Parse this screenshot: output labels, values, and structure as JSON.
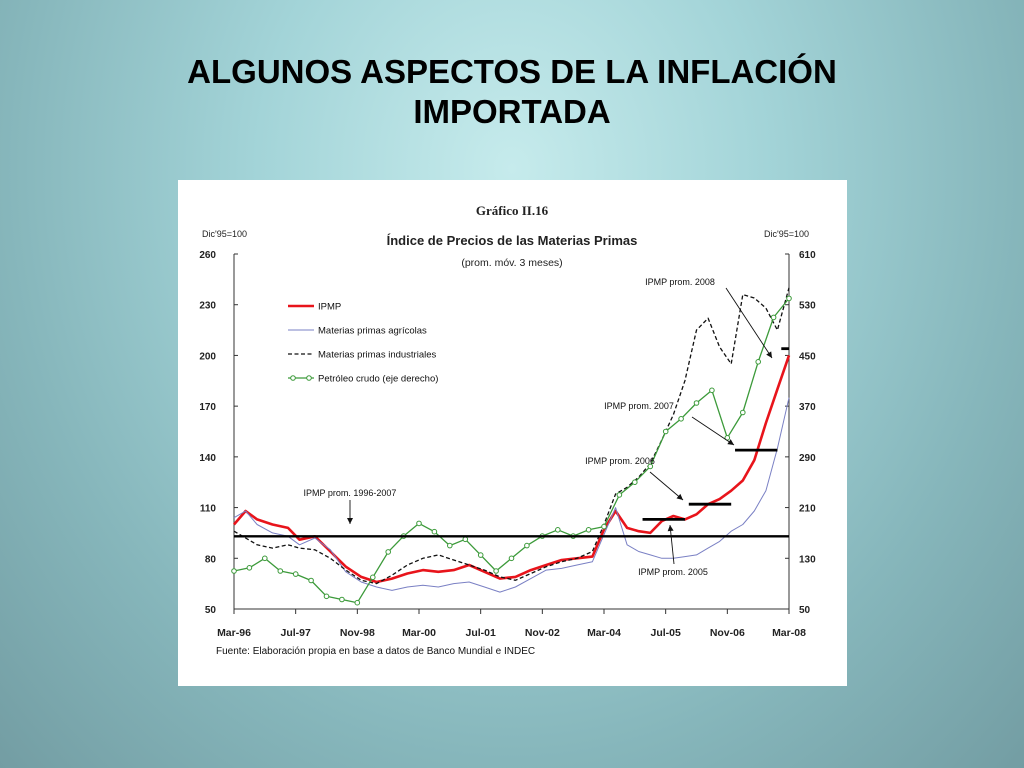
{
  "slide": {
    "title_line1": "ALGUNOS ASPECTOS DE LA INFLACIÓN",
    "title_line2": "IMPORTADA"
  },
  "chart_data": {
    "type": "line",
    "figure_number": "Gráfico II.16",
    "title": "Índice de Precios de las Materias Primas",
    "subtitle": "(prom. móv. 3 meses)",
    "left_axis_unit": "Dic'95=100",
    "right_axis_unit": "Dic'95=100",
    "ylim_left": [
      50,
      260
    ],
    "yticks_left": [
      50,
      80,
      110,
      140,
      170,
      200,
      230,
      260
    ],
    "ylim_right": [
      50,
      610
    ],
    "yticks_right": [
      50,
      130,
      210,
      290,
      370,
      450,
      530,
      610
    ],
    "x_range": [
      "1996-03",
      "2008-03"
    ],
    "xtick_labels": [
      "Mar-96",
      "Jul-97",
      "Nov-98",
      "Mar-00",
      "Jul-01",
      "Nov-02",
      "Mar-04",
      "Jul-05",
      "Nov-06",
      "Mar-08"
    ],
    "xtick_dates": [
      "1996-03",
      "1997-07",
      "1998-11",
      "2000-03",
      "2001-07",
      "2002-11",
      "2004-03",
      "2005-07",
      "2006-11",
      "2008-03"
    ],
    "source": "Fuente: Elaboración propia en base a datos de Banco Mundial e INDEC",
    "legend_position": "top-left",
    "colors": {
      "ipmp": "#e8141b",
      "agricolas": "#7a80c4",
      "industriales": "#111111",
      "petroleo": "#3c9a3a",
      "reference": "#000000"
    },
    "series": [
      {
        "name": "IPMP",
        "axis": "left",
        "style": "solid-red-thick",
        "x": [
          "1996-03",
          "1996-06",
          "1996-09",
          "1997-01",
          "1997-05",
          "1997-08",
          "1997-12",
          "1998-04",
          "1998-08",
          "1998-12",
          "1999-04",
          "1999-08",
          "1999-12",
          "2000-04",
          "2000-08",
          "2000-12",
          "2001-04",
          "2001-08",
          "2001-12",
          "2002-04",
          "2002-08",
          "2002-12",
          "2003-04",
          "2003-08",
          "2003-12",
          "2004-03",
          "2004-06",
          "2004-09",
          "2004-12",
          "2005-03",
          "2005-06",
          "2005-09",
          "2005-12",
          "2006-03",
          "2006-06",
          "2006-09",
          "2006-12",
          "2007-03",
          "2007-06",
          "2007-09",
          "2007-12",
          "2008-03"
        ],
        "values": [
          100,
          108,
          103,
          100,
          98,
          91,
          93,
          84,
          75,
          69,
          66,
          68,
          71,
          73,
          72,
          73,
          76,
          72,
          68,
          69,
          73,
          76,
          79,
          80,
          81,
          97,
          108,
          98,
          96,
          95,
          102,
          105,
          103,
          106,
          112,
          115,
          120,
          126,
          138,
          160,
          180,
          200
        ]
      },
      {
        "name": "Materias primas agrícolas",
        "axis": "left",
        "style": "solid-blue-thin",
        "x": [
          "1996-03",
          "1996-06",
          "1996-09",
          "1997-01",
          "1997-05",
          "1997-08",
          "1997-12",
          "1998-04",
          "1998-08",
          "1998-12",
          "1999-04",
          "1999-08",
          "1999-12",
          "2000-04",
          "2000-08",
          "2000-12",
          "2001-04",
          "2001-08",
          "2001-12",
          "2002-04",
          "2002-08",
          "2002-12",
          "2003-04",
          "2003-08",
          "2003-12",
          "2004-03",
          "2004-06",
          "2004-09",
          "2004-12",
          "2005-03",
          "2005-06",
          "2005-09",
          "2005-12",
          "2006-03",
          "2006-06",
          "2006-09",
          "2006-12",
          "2007-03",
          "2007-06",
          "2007-09",
          "2007-12",
          "2008-03"
        ],
        "values": [
          104,
          108,
          100,
          95,
          93,
          88,
          92,
          85,
          72,
          66,
          63,
          61,
          63,
          64,
          63,
          65,
          66,
          63,
          60,
          63,
          68,
          73,
          74,
          76,
          78,
          94,
          110,
          88,
          84,
          82,
          80,
          80,
          81,
          82,
          86,
          90,
          96,
          100,
          108,
          120,
          145,
          175
        ]
      },
      {
        "name": "Materias primas industriales",
        "axis": "left",
        "style": "dashed-black",
        "x": [
          "1996-03",
          "1996-06",
          "1996-09",
          "1997-01",
          "1997-05",
          "1997-08",
          "1997-12",
          "1998-04",
          "1998-08",
          "1998-12",
          "1999-04",
          "1999-08",
          "1999-12",
          "2000-04",
          "2000-08",
          "2000-12",
          "2001-04",
          "2001-08",
          "2001-12",
          "2002-04",
          "2002-08",
          "2002-12",
          "2003-04",
          "2003-08",
          "2003-12",
          "2004-03",
          "2004-06",
          "2004-09",
          "2004-12",
          "2005-03",
          "2005-06",
          "2005-09",
          "2005-12",
          "2006-03",
          "2006-06",
          "2006-09",
          "2006-12",
          "2007-03",
          "2007-06",
          "2007-09",
          "2007-12",
          "2008-03"
        ],
        "values": [
          96,
          92,
          88,
          86,
          88,
          86,
          85,
          80,
          73,
          67,
          65,
          70,
          76,
          80,
          82,
          79,
          76,
          73,
          69,
          67,
          71,
          75,
          78,
          80,
          84,
          100,
          118,
          122,
          128,
          136,
          150,
          165,
          185,
          215,
          222,
          205,
          195,
          236,
          234,
          228,
          215,
          240
        ]
      },
      {
        "name": "Petróleo crudo (eje derecho)",
        "axis": "right",
        "style": "green-circles",
        "x": [
          "1996-03",
          "1996-07",
          "1996-11",
          "1997-03",
          "1997-07",
          "1997-11",
          "1998-03",
          "1998-07",
          "1998-11",
          "1999-03",
          "1999-07",
          "1999-11",
          "2000-03",
          "2000-07",
          "2000-11",
          "2001-03",
          "2001-07",
          "2001-11",
          "2002-03",
          "2002-07",
          "2002-11",
          "2003-03",
          "2003-07",
          "2003-11",
          "2004-03",
          "2004-07",
          "2004-11",
          "2005-03",
          "2005-07",
          "2005-11",
          "2006-03",
          "2006-07",
          "2006-11",
          "2007-03",
          "2007-07",
          "2007-11",
          "2008-03"
        ],
        "values": [
          110,
          115,
          130,
          110,
          105,
          95,
          70,
          65,
          60,
          100,
          140,
          165,
          185,
          172,
          150,
          160,
          135,
          110,
          130,
          150,
          165,
          175,
          165,
          175,
          180,
          230,
          250,
          275,
          330,
          350,
          375,
          395,
          320,
          360,
          440,
          510,
          540
        ]
      }
    ],
    "reference_lines": [
      {
        "label": "IPMP prom. 1996-2007",
        "axis": "left",
        "value": 93,
        "x_start": "1996-03",
        "x_end": "2008-03"
      },
      {
        "label": "IPMP prom. 2005",
        "axis": "left",
        "value": 103,
        "x_start": "2005-01",
        "x_end": "2005-12"
      },
      {
        "label": "IPMP prom. 2006",
        "axis": "left",
        "value": 112,
        "x_start": "2006-01",
        "x_end": "2006-12"
      },
      {
        "label": "IPMP prom. 2007",
        "axis": "left",
        "value": 144,
        "x_start": "2007-01",
        "x_end": "2007-12"
      },
      {
        "label": "IPMP prom. 2008",
        "axis": "left",
        "value": 204,
        "x_start": "2008-01",
        "x_end": "2008-03"
      }
    ]
  }
}
